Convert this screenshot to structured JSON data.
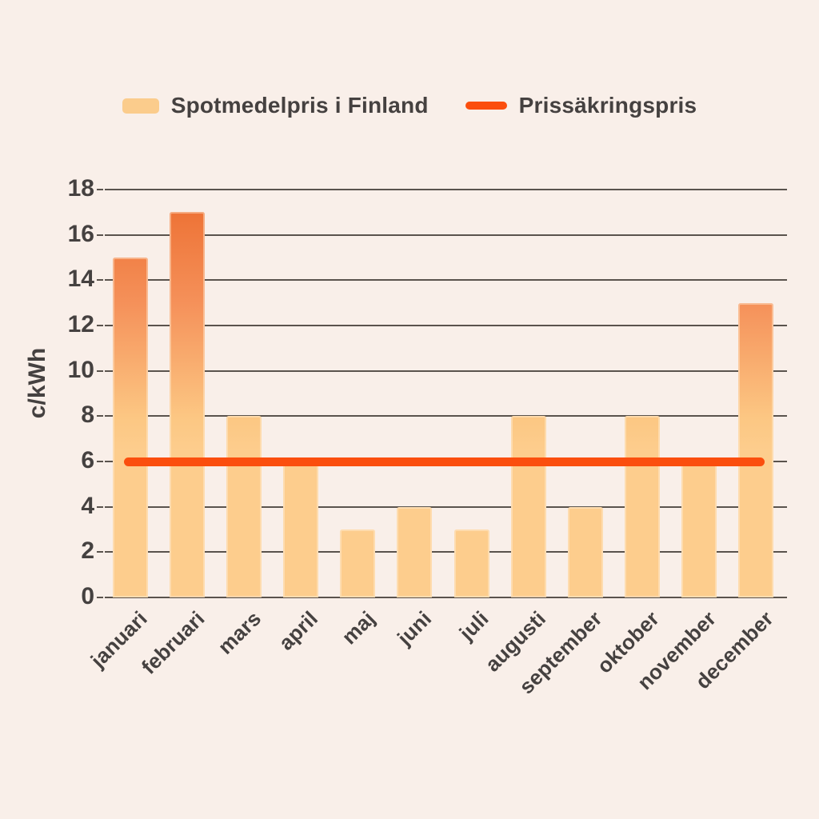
{
  "chart_data": {
    "type": "bar",
    "categories": [
      "januari",
      "februari",
      "mars",
      "april",
      "maj",
      "juni",
      "juli",
      "augusti",
      "september",
      "oktober",
      "november",
      "december"
    ],
    "series": [
      {
        "name": "Spotmedelpris i Finland",
        "type": "bar",
        "values": [
          15,
          17,
          8,
          6,
          3,
          4,
          3,
          8,
          4,
          8,
          6,
          13
        ]
      },
      {
        "name": "Prissäkringspris",
        "type": "line",
        "value": 6
      }
    ],
    "title": "",
    "xlabel": "",
    "ylabel": "c/kWh",
    "ylim": [
      0,
      18
    ],
    "ytick_step": 2,
    "grid": true,
    "legend_position": "top"
  },
  "colors": {
    "background": "#f9efe9",
    "bar_gradient_top": "#ec6c2e",
    "bar_gradient_mid1": "#f5915a",
    "bar_gradient_mid2": "#fcc783",
    "bar_gradient_bottom": "#fdcd8d",
    "legend_bar_swatch": "#fbcc8c",
    "hedge_line": "#fb4e0e",
    "text": "#454140",
    "gridline": "#5a534d"
  }
}
